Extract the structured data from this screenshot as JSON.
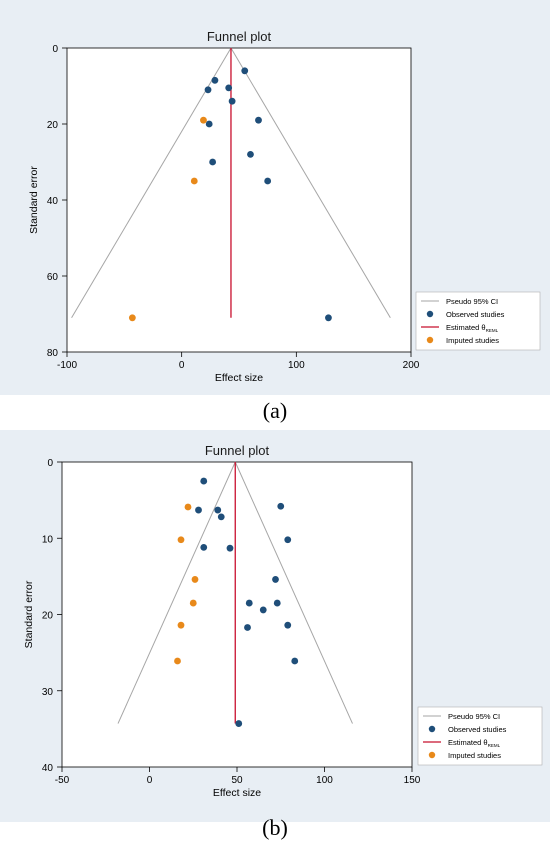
{
  "colors": {
    "panel_bg": "#e8eef4",
    "observed": "#1f4e79",
    "imputed": "#e8891a",
    "estimate_line": "#c8102e",
    "ci_line": "#a6a6a6"
  },
  "chart_data": [
    {
      "type": "scatter",
      "panel": "a",
      "caption": "(a)",
      "title": "Funnel plot",
      "xlabel": "Effect size",
      "ylabel": "Standard error",
      "xlim": [
        -100,
        200
      ],
      "ylim": [
        0,
        80
      ],
      "y_reversed": true,
      "xticks": [
        -100,
        0,
        100,
        200
      ],
      "yticks": [
        0,
        20,
        40,
        60,
        80
      ],
      "grid": false,
      "legend_position": "bottom-right",
      "legend": [
        {
          "key": "ci",
          "label": "Pseudo 95% CI"
        },
        {
          "key": "observed",
          "label": "Observed studies"
        },
        {
          "key": "estimate",
          "label": "Estimated θ",
          "subscript": "REML"
        },
        {
          "key": "imputed",
          "label": "Imputed studies"
        }
      ],
      "estimate": 43,
      "funnel_max_se": 71,
      "ci_x_at_max_se": [
        -96,
        182
      ],
      "observed": [
        {
          "x": 55,
          "y": 6
        },
        {
          "x": 29,
          "y": 8.5
        },
        {
          "x": 23,
          "y": 11
        },
        {
          "x": 41,
          "y": 10.5
        },
        {
          "x": 44,
          "y": 14
        },
        {
          "x": 67,
          "y": 19
        },
        {
          "x": 24,
          "y": 20
        },
        {
          "x": 60,
          "y": 28
        },
        {
          "x": 27,
          "y": 30
        },
        {
          "x": 75,
          "y": 35
        },
        {
          "x": 128,
          "y": 71
        }
      ],
      "imputed": [
        {
          "x": 19,
          "y": 19
        },
        {
          "x": 11,
          "y": 35
        },
        {
          "x": -43,
          "y": 71
        }
      ]
    },
    {
      "type": "scatter",
      "panel": "b",
      "caption": "(b)",
      "title": "Funnel plot",
      "xlabel": "Effect size",
      "ylabel": "Standard error",
      "xlim": [
        -50,
        150
      ],
      "ylim": [
        0,
        40
      ],
      "y_reversed": true,
      "xticks": [
        -50,
        0,
        50,
        100,
        150
      ],
      "yticks": [
        0,
        10,
        20,
        30,
        40
      ],
      "grid": false,
      "legend_position": "bottom-right",
      "legend": [
        {
          "key": "ci",
          "label": "Pseudo 95% CI"
        },
        {
          "key": "observed",
          "label": "Observed studies"
        },
        {
          "key": "estimate",
          "label": "Estimated θ",
          "subscript": "REML"
        },
        {
          "key": "imputed",
          "label": "Imputed studies"
        }
      ],
      "estimate": 49,
      "funnel_max_se": 34.3,
      "ci_x_at_max_se": [
        -18,
        116
      ],
      "observed": [
        {
          "x": 31,
          "y": 2.5
        },
        {
          "x": 75,
          "y": 5.8
        },
        {
          "x": 28,
          "y": 6.3
        },
        {
          "x": 39,
          "y": 6.3
        },
        {
          "x": 41,
          "y": 7.2
        },
        {
          "x": 79,
          "y": 10.2
        },
        {
          "x": 31,
          "y": 11.2
        },
        {
          "x": 46,
          "y": 11.3
        },
        {
          "x": 72,
          "y": 15.4
        },
        {
          "x": 57,
          "y": 18.5
        },
        {
          "x": 73,
          "y": 18.5
        },
        {
          "x": 65,
          "y": 19.4
        },
        {
          "x": 56,
          "y": 21.7
        },
        {
          "x": 79,
          "y": 21.4
        },
        {
          "x": 83,
          "y": 26.1
        },
        {
          "x": 51,
          "y": 34.3
        }
      ],
      "imputed": [
        {
          "x": 22,
          "y": 5.9
        },
        {
          "x": 18,
          "y": 10.2
        },
        {
          "x": 26,
          "y": 15.4
        },
        {
          "x": 25,
          "y": 18.5
        },
        {
          "x": 18,
          "y": 21.4
        },
        {
          "x": 16,
          "y": 26.1
        }
      ]
    }
  ]
}
